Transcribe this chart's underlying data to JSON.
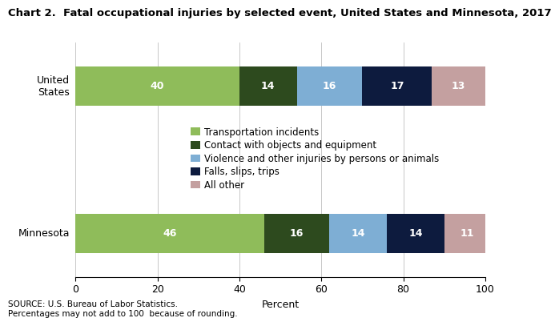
{
  "title": "Chart 2.  Fatal occupational injuries by selected event, United States and Minnesota, 2017",
  "categories": [
    "Minnesota",
    "United\nStates"
  ],
  "segments": [
    {
      "label": "Transportation incidents",
      "color": "#8fbc5a",
      "values": [
        46,
        40
      ]
    },
    {
      "label": "Contact with objects and equipment",
      "color": "#2d4a1e",
      "values": [
        16,
        14
      ]
    },
    {
      "label": "Violence and other injuries by persons or animals",
      "color": "#7eaed4",
      "values": [
        14,
        16
      ]
    },
    {
      "label": "Falls, slips, trips",
      "color": "#0d1b3e",
      "values": [
        14,
        17
      ]
    },
    {
      "label": "All other",
      "color": "#c4a0a0",
      "values": [
        11,
        13
      ]
    }
  ],
  "xlabel": "Percent",
  "xlim": [
    0,
    100
  ],
  "xticks": [
    0,
    20,
    40,
    60,
    80,
    100
  ],
  "source_text": "SOURCE: U.S. Bureau of Labor Statistics.\nPercentages may not add to 100  because of rounding.",
  "title_fontsize": 9.5,
  "label_fontsize": 9,
  "tick_fontsize": 9,
  "legend_fontsize": 8.5,
  "source_fontsize": 7.5,
  "bar_height": 0.58,
  "fig_width": 6.24,
  "fig_height": 3.95
}
